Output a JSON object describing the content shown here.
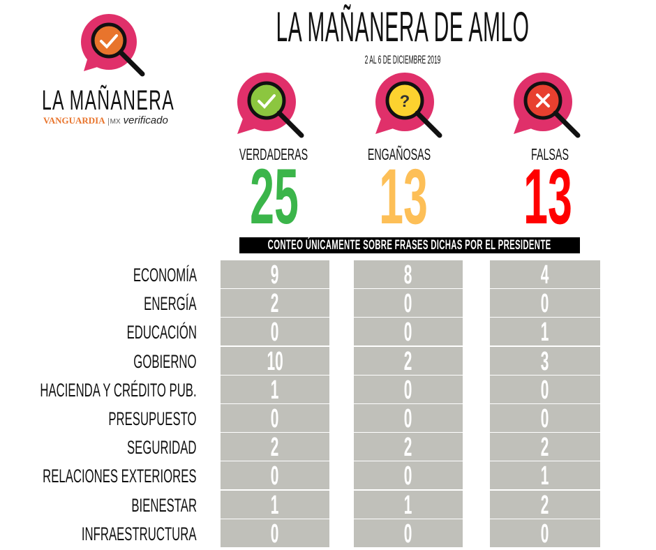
{
  "header": {
    "title": "LA MAÑANERA DE AMLO",
    "subtitle": "2 AL 6 DE DICIEMBRE 2019"
  },
  "logo": {
    "name": "LA MAÑANERA",
    "brand": "VANGUARDIA",
    "brand_suffix": "MX",
    "partner": "verificado",
    "icon": "magnifier-check-icon",
    "color": "#e8742c"
  },
  "categories": [
    {
      "label": "VERDADERAS",
      "total": "25",
      "color": "#3bb54a",
      "fill": "#8cc63f",
      "icon": "check-icon"
    },
    {
      "label": "ENGAÑOSAS",
      "total": "13",
      "color": "#fdbf57",
      "fill": "#fcd22f",
      "icon": "question-icon"
    },
    {
      "label": "FALSAS",
      "total": "13",
      "color": "#ff0000",
      "fill": "#e8402f",
      "icon": "x-icon"
    }
  ],
  "banner": "CONTEO ÚNICAMENTE SOBRE FRASES DICHAS POR EL PRESIDENTE",
  "table": {
    "columns": [
      "VERDADERAS",
      "ENGAÑOSAS",
      "FALSAS"
    ],
    "rows": [
      {
        "label": "ECONOMÍA",
        "values": [
          "9",
          "8",
          "4"
        ]
      },
      {
        "label": "ENERGÍA",
        "values": [
          "2",
          "0",
          "0"
        ]
      },
      {
        "label": "EDUCACIÓN",
        "values": [
          "0",
          "0",
          "1"
        ]
      },
      {
        "label": "GOBIERNO",
        "values": [
          "10",
          "2",
          "3"
        ]
      },
      {
        "label": "HACIENDA Y CRÉDITO PUB.",
        "values": [
          "1",
          "0",
          "0"
        ]
      },
      {
        "label": "PRESUPUESTO",
        "values": [
          "0",
          "0",
          "0"
        ]
      },
      {
        "label": "SEGURIDAD",
        "values": [
          "2",
          "2",
          "2"
        ]
      },
      {
        "label": "RELACIONES EXTERIORES",
        "values": [
          "0",
          "0",
          "1"
        ]
      },
      {
        "label": "BIENESTAR",
        "values": [
          "1",
          "1",
          "2"
        ]
      },
      {
        "label": "INFRAESTRUCTURA",
        "values": [
          "0",
          "0",
          "0"
        ]
      }
    ]
  },
  "colors": {
    "pink": "#e0306a",
    "cell": "#c0c0ba"
  }
}
